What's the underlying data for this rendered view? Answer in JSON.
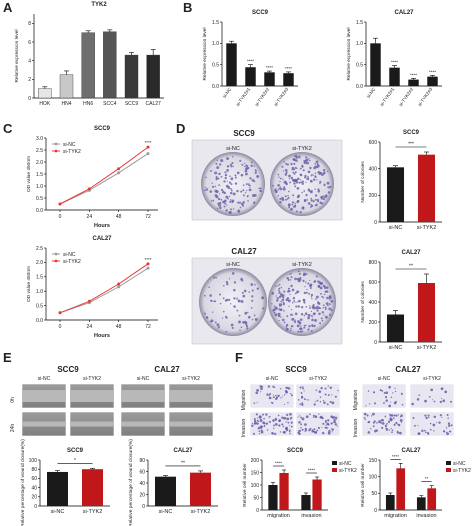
{
  "figure": {
    "panel_letters": [
      "A",
      "B",
      "C",
      "D",
      "E",
      "F"
    ]
  },
  "colors": {
    "nc_line": "#9a9a9a",
    "tyk2_line": "#e8393a",
    "bar_black": "#1a1a1a",
    "bar_red": "#c0171b",
    "bar_gray_light": "#bdbdbd",
    "crystal_violet": "#6b5aa8"
  },
  "chart_data": [
    {
      "id": "A",
      "type": "bar",
      "title": "TYK2",
      "ylabel": "Relative expression level",
      "xlabel": "",
      "categories": [
        "HOK",
        "HN4",
        "HN6",
        "SCC4",
        "SCC9",
        "CAL27"
      ],
      "values": [
        1.0,
        2.5,
        7.0,
        7.1,
        4.6,
        4.6
      ],
      "errors": [
        0.2,
        0.4,
        0.2,
        0.2,
        0.3,
        0.6
      ],
      "ylim": [
        0,
        9
      ],
      "yticks": [
        0,
        2,
        4,
        6,
        8
      ],
      "bar_colors": [
        "#e6e6e6",
        "#c8c8c8",
        "#6e6e6e",
        "#555555",
        "#3a3a3a",
        "#2a2a2a"
      ]
    },
    {
      "id": "B1",
      "type": "bar",
      "title": "SCC9",
      "ylabel": "Relative expression level",
      "xlabel": "",
      "categories": [
        "si-NC",
        "si-TYK2#1",
        "si-TYK2#2",
        "si-TYK2#3"
      ],
      "values": [
        1.0,
        0.44,
        0.32,
        0.3
      ],
      "errors": [
        0.05,
        0.06,
        0.03,
        0.03
      ],
      "sig": [
        "",
        "****",
        "****",
        "****"
      ],
      "ylim": [
        0,
        1.5
      ],
      "yticks": [
        0.0,
        0.5,
        1.0,
        1.5
      ]
    },
    {
      "id": "B2",
      "type": "bar",
      "title": "CAL27",
      "ylabel": "Relative expression level",
      "xlabel": "",
      "categories": [
        "si-NC",
        "si-TYK2#1",
        "si-TYK2#2",
        "si-TYK2#3"
      ],
      "values": [
        1.0,
        0.43,
        0.15,
        0.22
      ],
      "errors": [
        0.12,
        0.05,
        0.03,
        0.03
      ],
      "sig": [
        "",
        "****",
        "****",
        "****"
      ],
      "ylim": [
        0,
        1.5
      ],
      "yticks": [
        0.0,
        0.5,
        1.0,
        1.5
      ]
    },
    {
      "id": "C1",
      "type": "line",
      "title": "SCC9",
      "xlabel": "Hours",
      "ylabel": "OD value 450nm",
      "x": [
        0,
        24,
        48,
        72
      ],
      "xticks": [
        0,
        24,
        48,
        72
      ],
      "ylim": [
        0.0,
        3.0
      ],
      "yticks": [
        0.0,
        0.5,
        1.0,
        1.5,
        2.0,
        2.5,
        3.0
      ],
      "series": [
        {
          "name": "si-NC",
          "values": [
            0.25,
            0.82,
            1.55,
            2.35
          ]
        },
        {
          "name": "si-TYK2",
          "values": [
            0.25,
            0.88,
            1.72,
            2.62
          ]
        }
      ],
      "sig": "****"
    },
    {
      "id": "C2",
      "type": "line",
      "title": "CAL27",
      "xlabel": "Hours",
      "ylabel": "OD value 450nm",
      "x": [
        0,
        24,
        48,
        72
      ],
      "xticks": [
        0,
        24,
        48,
        72
      ],
      "ylim": [
        0.0,
        2.5
      ],
      "yticks": [
        0.0,
        0.5,
        1.0,
        1.5,
        2.0,
        2.5
      ],
      "series": [
        {
          "name": "si-NC",
          "values": [
            0.25,
            0.6,
            1.15,
            1.8
          ]
        },
        {
          "name": "si-TYK2",
          "values": [
            0.25,
            0.65,
            1.25,
            1.95
          ]
        }
      ],
      "sig": "****"
    },
    {
      "id": "D1",
      "type": "bar",
      "title": "SCC9",
      "ylabel": "Number of colonies",
      "xlabel": "",
      "categories": [
        "si-NC",
        "si-TYK2"
      ],
      "values": [
        410,
        505
      ],
      "errors": [
        12,
        20
      ],
      "sig": "***",
      "ylim": [
        0,
        600
      ],
      "yticks": [
        0,
        200,
        400,
        600
      ]
    },
    {
      "id": "D2",
      "type": "bar",
      "title": "CAL27",
      "ylabel": "Number of colonies",
      "xlabel": "",
      "categories": [
        "si-NC",
        "si-TYK2"
      ],
      "values": [
        275,
        590
      ],
      "errors": [
        40,
        90
      ],
      "sig": "**",
      "ylim": [
        0,
        800
      ],
      "yticks": [
        0,
        200,
        400,
        600,
        800
      ]
    },
    {
      "id": "E1",
      "type": "bar",
      "title": "SCC9",
      "ylabel": "Relative percentage of wound closure(%)",
      "xlabel": "",
      "categories": [
        "si-NC",
        "si-TYK2"
      ],
      "values": [
        74,
        80
      ],
      "errors": [
        3,
        2
      ],
      "sig": "*",
      "ylim": [
        0,
        100
      ],
      "yticks": [
        0,
        20,
        40,
        60,
        80,
        100
      ]
    },
    {
      "id": "E2",
      "type": "bar",
      "title": "CAL27",
      "ylabel": "Relative percentage of wound closure(%)",
      "xlabel": "",
      "categories": [
        "si-NC",
        "si-TYK2"
      ],
      "values": [
        51,
        58
      ],
      "errors": [
        2,
        3
      ],
      "sig": "**",
      "ylim": [
        0,
        80
      ],
      "yticks": [
        0,
        20,
        40,
        60,
        80
      ]
    },
    {
      "id": "F1",
      "type": "bar",
      "title": "SCC9",
      "ylabel": "Relative cell number",
      "xlabel": "",
      "categories": [
        "migration",
        "invasion"
      ],
      "series": [
        {
          "name": "si-NC",
          "values": [
            100,
            60
          ],
          "errors": [
            10,
            8
          ]
        },
        {
          "name": "si-TYK2",
          "values": [
            148,
            122
          ],
          "errors": [
            12,
            10
          ]
        }
      ],
      "sig": [
        "****",
        "****"
      ],
      "ylim": [
        0,
        200
      ],
      "yticks": [
        0,
        50,
        100,
        150,
        200
      ]
    },
    {
      "id": "F2",
      "type": "bar",
      "title": "CAL27",
      "ylabel": "Relative cell number",
      "xlabel": "",
      "categories": [
        "migration",
        "invasion"
      ],
      "series": [
        {
          "name": "si-NC",
          "values": [
            45,
            38
          ],
          "errors": [
            6,
            5
          ]
        },
        {
          "name": "si-TYK2",
          "values": [
            125,
            65
          ],
          "errors": [
            15,
            8
          ]
        }
      ],
      "sig": [
        "****",
        "**"
      ],
      "ylim": [
        0,
        150
      ],
      "yticks": [
        0,
        50,
        100,
        150
      ]
    }
  ],
  "images": {
    "D": {
      "col_labels": [
        "si-NC",
        "si-TYK2"
      ],
      "row_titles": [
        "SCC9",
        "CAL27"
      ]
    },
    "E": {
      "groups": [
        "SCC9",
        "CAL27"
      ],
      "col_labels": [
        "si-NC",
        "si-TYK2"
      ],
      "row_labels": [
        "0h",
        "24h"
      ]
    },
    "F": {
      "groups": [
        "SCC9",
        "CAL27"
      ],
      "col_labels": [
        "si-NC",
        "si-TYK2"
      ],
      "row_labels": [
        "Migration",
        "Invasion"
      ]
    }
  }
}
